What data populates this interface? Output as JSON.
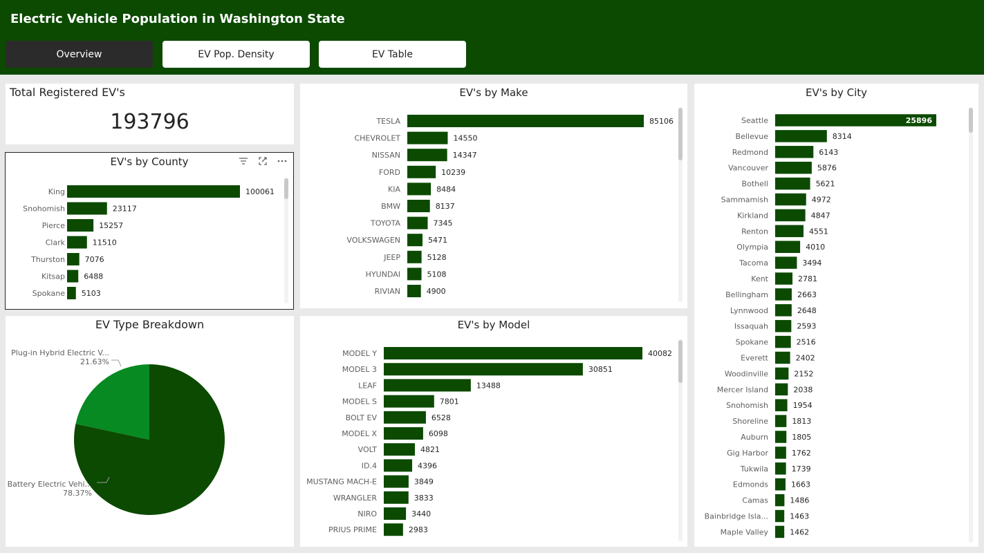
{
  "header": {
    "title": "Electric Vehicle Population in Washington State",
    "tabs": [
      {
        "label": "Overview",
        "active": true
      },
      {
        "label": "EV Pop. Density",
        "active": false
      },
      {
        "label": "EV Table",
        "active": false
      }
    ]
  },
  "kpi": {
    "title": "Total Registered EV's",
    "value": "193796"
  },
  "colors": {
    "header_bg": "#0b4a00",
    "bar": "#0b4a00",
    "pie_secondary": "#078a21",
    "label_in_bar": "#ffffff"
  },
  "icons": {
    "filter": "filter-icon",
    "focus": "focus-mode-icon",
    "more": "more-options-icon"
  },
  "chart_data": [
    {
      "id": "county",
      "type": "bar",
      "orientation": "horizontal",
      "title": "EV's by County",
      "categories": [
        "King",
        "Snohomish",
        "Pierce",
        "Clark",
        "Thurston",
        "Kitsap",
        "Spokane"
      ],
      "values": [
        100061,
        23117,
        15257,
        11510,
        7076,
        6488,
        5103
      ],
      "value_labels": [
        "100061",
        "23117",
        "15257",
        "11510",
        "7076",
        "6488",
        "5103"
      ]
    },
    {
      "id": "make",
      "type": "bar",
      "orientation": "horizontal",
      "title": "EV's by Make",
      "categories": [
        "TESLA",
        "CHEVROLET",
        "NISSAN",
        "FORD",
        "KIA",
        "BMW",
        "TOYOTA",
        "VOLKSWAGEN",
        "JEEP",
        "HYUNDAI",
        "RIVIAN"
      ],
      "values": [
        85106,
        14550,
        14347,
        10239,
        8484,
        8137,
        7345,
        5471,
        5128,
        5108,
        4900
      ],
      "value_labels": [
        "85106",
        "14550",
        "14347",
        "10239",
        "8484",
        "8137",
        "7345",
        "5471",
        "5128",
        "5108",
        "4900"
      ]
    },
    {
      "id": "model",
      "type": "bar",
      "orientation": "horizontal",
      "title": "EV's by Model",
      "categories": [
        "MODEL Y",
        "MODEL 3",
        "LEAF",
        "MODEL S",
        "BOLT EV",
        "MODEL X",
        "VOLT",
        "ID.4",
        "MUSTANG MACH-E",
        "WRANGLER",
        "NIRO",
        "PRIUS PRIME"
      ],
      "values": [
        40082,
        30851,
        13488,
        7801,
        6528,
        6098,
        4821,
        4396,
        3849,
        3833,
        3440,
        2983
      ],
      "value_labels": [
        "40082",
        "30851",
        "13488",
        "7801",
        "6528",
        "6098",
        "4821",
        "4396",
        "3849",
        "3833",
        "3440",
        "2983"
      ]
    },
    {
      "id": "city",
      "type": "bar",
      "orientation": "horizontal",
      "title": "EV's by City",
      "categories": [
        "Seattle",
        "Bellevue",
        "Redmond",
        "Vancouver",
        "Bothell",
        "Sammamish",
        "Kirkland",
        "Renton",
        "Olympia",
        "Tacoma",
        "Kent",
        "Bellingham",
        "Lynnwood",
        "Issaquah",
        "Spokane",
        "Everett",
        "Woodinville",
        "Mercer Island",
        "Snohomish",
        "Shoreline",
        "Auburn",
        "Gig Harbor",
        "Tukwila",
        "Edmonds",
        "Camas",
        "Bainbridge Isla...",
        "Maple Valley"
      ],
      "values": [
        25896,
        8314,
        6143,
        5876,
        5621,
        4972,
        4847,
        4551,
        4010,
        3494,
        2781,
        2663,
        2648,
        2593,
        2516,
        2402,
        2152,
        2038,
        1954,
        1813,
        1805,
        1762,
        1739,
        1663,
        1486,
        1463,
        1462
      ],
      "value_labels": [
        "25896",
        "8314",
        "6143",
        "5876",
        "5621",
        "4972",
        "4847",
        "4551",
        "4010",
        "3494",
        "2781",
        "2663",
        "2648",
        "2593",
        "2516",
        "2402",
        "2152",
        "2038",
        "1954",
        "1813",
        "1805",
        "1762",
        "1739",
        "1663",
        "1486",
        "1463",
        "1462"
      ]
    },
    {
      "id": "type",
      "type": "pie",
      "title": "EV Type Breakdown",
      "slices": [
        {
          "label": "Battery Electric Vehi...",
          "value": 78.37,
          "pct_label": "78.37%"
        },
        {
          "label": "Plug-in Hybrid Electric V...",
          "value": 21.63,
          "pct_label": "21.63%"
        }
      ]
    }
  ]
}
